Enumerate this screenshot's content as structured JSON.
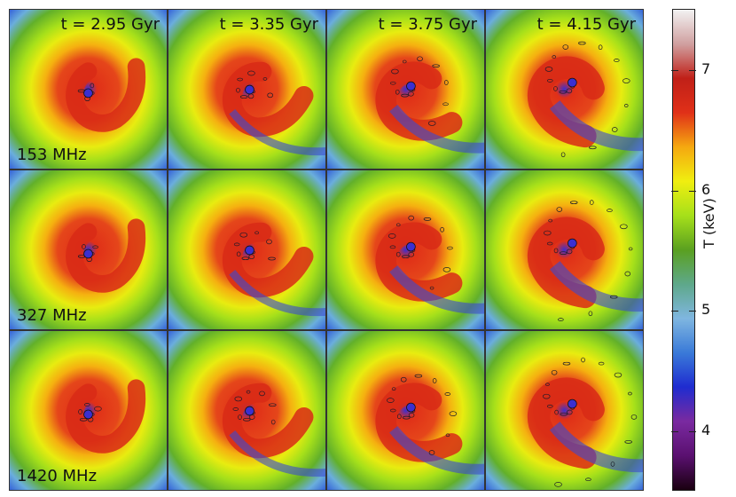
{
  "time_labels": [
    "t = 2.95 Gyr",
    "t = 3.35 Gyr",
    "t = 3.75 Gyr",
    "t = 4.15 Gyr"
  ],
  "frequency_labels": [
    "153 MHz",
    "327 MHz",
    "1420 MHz"
  ],
  "colorbar": {
    "title": "T (keV)",
    "ticks": [
      {
        "value": 7,
        "label": "7"
      },
      {
        "value": 6,
        "label": "6"
      },
      {
        "value": 5,
        "label": "5"
      },
      {
        "value": 4,
        "label": "4"
      }
    ],
    "range": [
      3.5,
      7.5
    ],
    "colors": [
      "#1a0010",
      "#5a1070",
      "#7a2aa0",
      "#1f2cd0",
      "#3a7ad8",
      "#7fb6e0",
      "#5ea88a",
      "#5aa020",
      "#a6e01a",
      "#f0ee10",
      "#f5a810",
      "#e03018",
      "#c02018",
      "#d0a0a0",
      "#f2f2f2"
    ]
  }
}
